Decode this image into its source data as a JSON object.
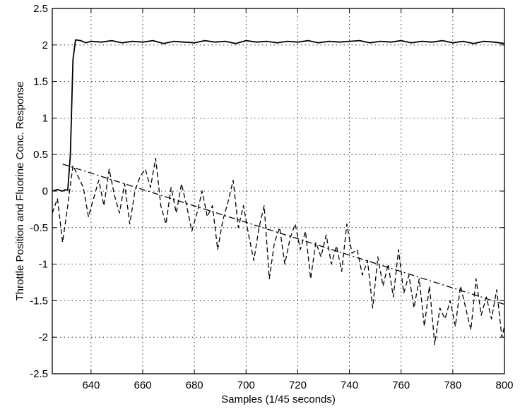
{
  "chart_data": {
    "type": "line",
    "title": "",
    "xlabel": "Samples (1/45 seconds)",
    "ylabel": "Throttle Position and Fluorine Conc. Response",
    "xlim": [
      625,
      800
    ],
    "ylim": [
      -2.5,
      2.5
    ],
    "grid": true,
    "x_ticks": [
      640,
      660,
      680,
      700,
      720,
      740,
      760,
      780,
      800
    ],
    "x_tick_labels": [
      "640",
      "660",
      "680",
      "700",
      "720",
      "740",
      "760",
      "780",
      "800"
    ],
    "y_ticks": [
      -2.5,
      -2,
      -1.5,
      -1,
      -0.5,
      0,
      0.5,
      1,
      1.5,
      2,
      2.5
    ],
    "y_tick_labels": [
      "-2.5",
      "-2",
      "-1.5",
      "-1",
      "-0.5",
      "0",
      "0.5",
      "1",
      "1.5",
      "2",
      "2.5"
    ],
    "series": [
      {
        "style": "solid",
        "color": "#000000",
        "x": [
          625,
          627,
          629,
          630,
          631,
          632,
          633,
          634,
          636,
          638,
          640,
          644,
          648,
          652,
          656,
          660,
          664,
          668,
          672,
          676,
          680,
          684,
          688,
          692,
          696,
          700,
          704,
          708,
          712,
          716,
          720,
          724,
          728,
          732,
          736,
          740,
          744,
          748,
          752,
          756,
          760,
          764,
          768,
          772,
          776,
          780,
          784,
          788,
          792,
          796,
          800
        ],
        "y": [
          0.0,
          0.02,
          0.0,
          0.02,
          0.01,
          0.5,
          1.8,
          2.07,
          2.06,
          2.03,
          2.05,
          2.04,
          2.06,
          2.03,
          2.05,
          2.04,
          2.06,
          2.02,
          2.05,
          2.04,
          2.03,
          2.06,
          2.04,
          2.05,
          2.02,
          2.06,
          2.04,
          2.05,
          2.03,
          2.05,
          2.04,
          2.06,
          2.03,
          2.05,
          2.04,
          2.05,
          2.06,
          2.03,
          2.05,
          2.04,
          2.06,
          2.03,
          2.05,
          2.04,
          2.06,
          2.03,
          2.05,
          2.02,
          2.05,
          2.04,
          2.02
        ]
      },
      {
        "style": "dashed",
        "color": "#000000",
        "x": [
          625,
          627,
          629,
          631,
          633,
          635,
          637,
          639,
          641,
          643,
          645,
          647,
          649,
          651,
          653,
          655,
          657,
          659,
          661,
          663,
          665,
          667,
          669,
          671,
          673,
          675,
          677,
          679,
          681,
          683,
          685,
          687,
          689,
          691,
          693,
          695,
          697,
          699,
          701,
          703,
          705,
          707,
          709,
          711,
          713,
          715,
          717,
          719,
          721,
          723,
          725,
          727,
          729,
          731,
          733,
          735,
          737,
          739,
          741,
          743,
          745,
          747,
          749,
          751,
          753,
          755,
          757,
          759,
          761,
          763,
          765,
          767,
          769,
          771,
          773,
          775,
          777,
          779,
          781,
          783,
          785,
          787,
          789,
          791,
          793,
          795,
          797,
          799,
          800
        ],
        "y": [
          -0.3,
          -0.1,
          -0.7,
          -0.2,
          0.35,
          0.2,
          0.05,
          -0.35,
          -0.1,
          0.15,
          -0.2,
          0.3,
          -0.05,
          -0.3,
          0.1,
          -0.45,
          0.0,
          0.2,
          0.3,
          0.05,
          0.45,
          -0.2,
          -0.45,
          0.05,
          -0.3,
          0.1,
          -0.2,
          -0.55,
          -0.3,
          0.0,
          -0.35,
          -0.2,
          -0.8,
          -0.4,
          -0.15,
          0.15,
          -0.5,
          -0.2,
          -0.6,
          -0.95,
          -0.5,
          -0.2,
          -1.2,
          -0.7,
          -0.5,
          -1.0,
          -0.65,
          -0.45,
          -0.8,
          -0.55,
          -1.2,
          -0.7,
          -0.9,
          -0.6,
          -1.0,
          -0.75,
          -1.1,
          -0.45,
          -0.85,
          -0.8,
          -1.15,
          -0.95,
          -1.6,
          -0.9,
          -1.3,
          -1.0,
          -1.45,
          -0.8,
          -1.4,
          -1.15,
          -1.6,
          -1.2,
          -1.85,
          -1.3,
          -2.1,
          -1.6,
          -1.75,
          -1.5,
          -1.85,
          -1.3,
          -1.6,
          -1.9,
          -1.2,
          -1.7,
          -1.45,
          -1.75,
          -1.35,
          -2.0,
          -1.85
        ]
      },
      {
        "style": "dash-dot",
        "color": "#000000",
        "x": [
          629,
          800
        ],
        "y": [
          0.37,
          -1.55
        ]
      }
    ]
  }
}
